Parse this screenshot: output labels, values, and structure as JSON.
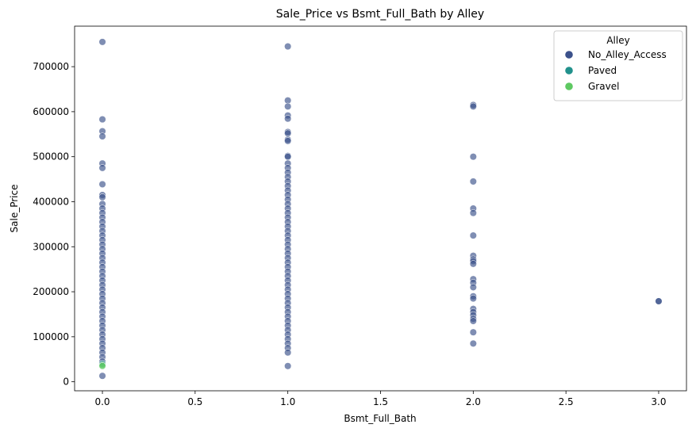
{
  "chart_data": {
    "type": "scatter",
    "title": "Sale_Price vs Bsmt_Full_Bath by Alley",
    "xlabel": "Bsmt_Full_Bath",
    "ylabel": "Sale_Price",
    "xlim": [
      -0.15,
      3.15
    ],
    "ylim": [
      -20000,
      790000
    ],
    "xticks": [
      0.0,
      0.5,
      1.0,
      1.5,
      2.0,
      2.5,
      3.0
    ],
    "xtick_labels": [
      "0.0",
      "0.5",
      "1.0",
      "1.5",
      "2.0",
      "2.5",
      "3.0"
    ],
    "yticks": [
      0,
      100000,
      200000,
      300000,
      400000,
      500000,
      600000,
      700000
    ],
    "ytick_labels": [
      "0",
      "100000",
      "200000",
      "300000",
      "400000",
      "500000",
      "600000",
      "700000"
    ],
    "grid": false,
    "legend": {
      "title": "Alley",
      "placement": "top-right"
    },
    "series": [
      {
        "name": "No_Alley_Access",
        "color": "#3b518b",
        "points": [
          [
            0,
            755000
          ],
          [
            0,
            582933
          ],
          [
            0,
            556581
          ],
          [
            0,
            545224
          ],
          [
            0,
            485000
          ],
          [
            0,
            475000
          ],
          [
            0,
            438780
          ],
          [
            0,
            415000
          ],
          [
            0,
            410000
          ],
          [
            0,
            395000
          ],
          [
            0,
            385000
          ],
          [
            0,
            375000
          ],
          [
            0,
            365000
          ],
          [
            0,
            355000
          ],
          [
            0,
            345000
          ],
          [
            0,
            335000
          ],
          [
            0,
            325000
          ],
          [
            0,
            315000
          ],
          [
            0,
            305000
          ],
          [
            0,
            295000
          ],
          [
            0,
            285000
          ],
          [
            0,
            275000
          ],
          [
            0,
            265000
          ],
          [
            0,
            255000
          ],
          [
            0,
            245000
          ],
          [
            0,
            235000
          ],
          [
            0,
            225000
          ],
          [
            0,
            215000
          ],
          [
            0,
            205000
          ],
          [
            0,
            195000
          ],
          [
            0,
            185000
          ],
          [
            0,
            175000
          ],
          [
            0,
            165000
          ],
          [
            0,
            155000
          ],
          [
            0,
            145000
          ],
          [
            0,
            135000
          ],
          [
            0,
            125000
          ],
          [
            0,
            115000
          ],
          [
            0,
            105000
          ],
          [
            0,
            95000
          ],
          [
            0,
            85000
          ],
          [
            0,
            75000
          ],
          [
            0,
            65000
          ],
          [
            0,
            55000
          ],
          [
            0,
            45000
          ],
          [
            0,
            13100
          ],
          [
            1,
            745000
          ],
          [
            1,
            625000
          ],
          [
            1,
            611657
          ],
          [
            1,
            591587
          ],
          [
            1,
            584500
          ],
          [
            1,
            555000
          ],
          [
            1,
            552000
          ],
          [
            1,
            538000
          ],
          [
            1,
            535000
          ],
          [
            1,
            501837
          ],
          [
            1,
            500000
          ],
          [
            1,
            485000
          ],
          [
            1,
            475000
          ],
          [
            1,
            465000
          ],
          [
            1,
            455000
          ],
          [
            1,
            445000
          ],
          [
            1,
            435000
          ],
          [
            1,
            425000
          ],
          [
            1,
            415000
          ],
          [
            1,
            405000
          ],
          [
            1,
            395000
          ],
          [
            1,
            385000
          ],
          [
            1,
            375000
          ],
          [
            1,
            365000
          ],
          [
            1,
            355000
          ],
          [
            1,
            345000
          ],
          [
            1,
            335000
          ],
          [
            1,
            325000
          ],
          [
            1,
            315000
          ],
          [
            1,
            305000
          ],
          [
            1,
            295000
          ],
          [
            1,
            285000
          ],
          [
            1,
            275000
          ],
          [
            1,
            265000
          ],
          [
            1,
            255000
          ],
          [
            1,
            245000
          ],
          [
            1,
            235000
          ],
          [
            1,
            225000
          ],
          [
            1,
            215000
          ],
          [
            1,
            205000
          ],
          [
            1,
            195000
          ],
          [
            1,
            185000
          ],
          [
            1,
            175000
          ],
          [
            1,
            165000
          ],
          [
            1,
            155000
          ],
          [
            1,
            145000
          ],
          [
            1,
            135000
          ],
          [
            1,
            125000
          ],
          [
            1,
            115000
          ],
          [
            1,
            105000
          ],
          [
            1,
            95000
          ],
          [
            1,
            85000
          ],
          [
            1,
            75000
          ],
          [
            1,
            65000
          ],
          [
            1,
            35000
          ],
          [
            2,
            615000
          ],
          [
            2,
            611657
          ],
          [
            2,
            500000
          ],
          [
            2,
            445000
          ],
          [
            2,
            385000
          ],
          [
            2,
            375000
          ],
          [
            2,
            325000
          ],
          [
            2,
            280000
          ],
          [
            2,
            272000
          ],
          [
            2,
            268000
          ],
          [
            2,
            262000
          ],
          [
            2,
            228000
          ],
          [
            2,
            220000
          ],
          [
            2,
            210000
          ],
          [
            2,
            190000
          ],
          [
            2,
            185000
          ],
          [
            2,
            162000
          ],
          [
            2,
            155000
          ],
          [
            2,
            148000
          ],
          [
            2,
            140000
          ],
          [
            2,
            135000
          ],
          [
            2,
            110000
          ],
          [
            2,
            85000
          ],
          [
            3,
            179000
          ],
          [
            3,
            179000
          ]
        ]
      },
      {
        "name": "Paved",
        "color": "#21918c",
        "points": [
          [
            0,
            40000
          ]
        ]
      },
      {
        "name": "Gravel",
        "color": "#5ec962",
        "points": [
          [
            0,
            37000
          ],
          [
            0,
            35000
          ]
        ]
      }
    ]
  }
}
